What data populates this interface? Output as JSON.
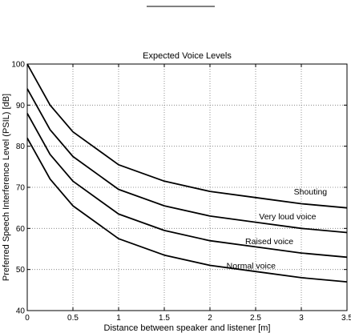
{
  "chart_data": {
    "type": "line",
    "title": "Expected Voice Levels",
    "xlabel": "Distance between speaker and listener [m]",
    "ylabel": "Preferred Speech Interference Level (PSIL) [dB]",
    "xlim": [
      0,
      3.5
    ],
    "ylim": [
      40,
      100
    ],
    "xticks": [
      0,
      0.5,
      1,
      1.5,
      2,
      2.5,
      3,
      3.5
    ],
    "xtick_labels": [
      "0",
      "0.5",
      "1",
      "1.5",
      "2",
      "2.5",
      "3",
      "3.5"
    ],
    "yticks": [
      40,
      50,
      60,
      70,
      80,
      90,
      100
    ],
    "ytick_labels": [
      "40",
      "50",
      "60",
      "70",
      "80",
      "90",
      "100"
    ],
    "grid": true,
    "x": [
      0,
      0.25,
      0.5,
      1,
      1.5,
      2,
      2.5,
      3,
      3.5
    ],
    "series": [
      {
        "name": "Shouting",
        "values": [
          100,
          90,
          83.5,
          75.5,
          71.5,
          69,
          67.5,
          66,
          65
        ]
      },
      {
        "name": "Very loud voice",
        "values": [
          94,
          84,
          77.5,
          69.5,
          65.5,
          63,
          61.5,
          60,
          59
        ]
      },
      {
        "name": "Raised voice",
        "values": [
          88,
          78,
          71.5,
          63.5,
          59.5,
          57,
          55.5,
          54,
          53
        ]
      },
      {
        "name": "Normal voice",
        "values": [
          82,
          72,
          65.5,
          57.5,
          53.5,
          51,
          49.5,
          48,
          47
        ]
      }
    ],
    "annotations": [
      {
        "text": "Shouting",
        "x": 3.1,
        "y": 68.2
      },
      {
        "text": "Very loud voice",
        "x": 2.85,
        "y": 62.2
      },
      {
        "text": "Raised voice",
        "x": 2.65,
        "y": 56.2
      },
      {
        "text": "Normal voice",
        "x": 2.45,
        "y": 50.2
      }
    ]
  }
}
